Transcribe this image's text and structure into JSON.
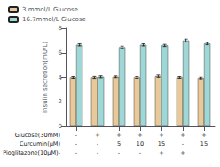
{
  "chart_data": {
    "type": "bar",
    "categories": [
      null,
      null,
      null,
      null,
      null,
      null,
      null
    ],
    "series": [
      {
        "name": "3 mmol/L Glucose",
        "color": "#e8c99a",
        "values": [
          4.0,
          4.0,
          4.05,
          4.0,
          4.1,
          4.0,
          3.95
        ],
        "errors": [
          0.07,
          0.08,
          0.07,
          0.07,
          0.09,
          0.07,
          0.07
        ]
      },
      {
        "name": "16.7mmol/L Glucose",
        "color": "#9fd6d6",
        "values": [
          6.65,
          4.05,
          6.45,
          6.65,
          6.6,
          7.0,
          6.75
        ],
        "errors": [
          0.09,
          0.08,
          0.09,
          0.09,
          0.09,
          0.12,
          0.09
        ]
      }
    ],
    "ylabel": "Insulin secretion(mU/L)",
    "ylim": [
      0,
      8
    ],
    "yticks": [
      0,
      2,
      4,
      6,
      8
    ],
    "grid": false,
    "legend": "upper left",
    "annotation_rows": [
      {
        "label": "Glucose(30mM)",
        "values": [
          "-",
          "+",
          "+",
          "+",
          "+",
          "+",
          "+"
        ]
      },
      {
        "label": "Curcumin(μM)",
        "values": [
          "-",
          "-",
          "5",
          "10",
          "15",
          "-",
          "15"
        ]
      },
      {
        "label": "Pioglitazone(10μM)-",
        "values": [
          "-",
          "-",
          "-",
          "-",
          "+",
          "+"
        ]
      }
    ]
  }
}
